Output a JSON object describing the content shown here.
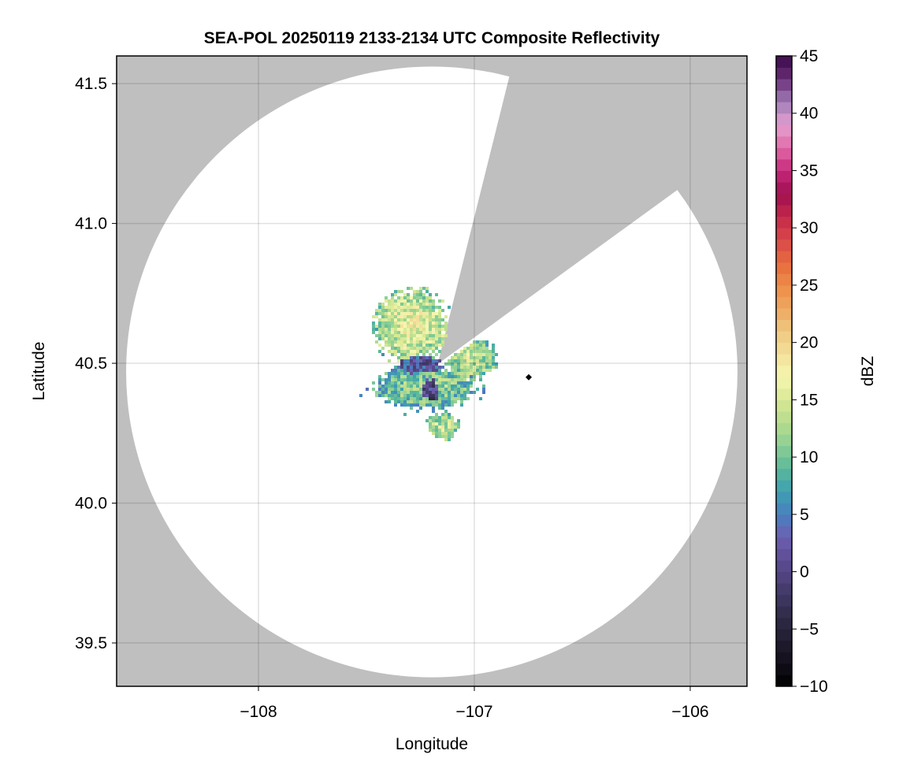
{
  "chart_data": {
    "type": "heatmap",
    "title": "SEA-POL 20250119 2133-2134 UTC Composite Reflectivity",
    "xlabel": "Longitude",
    "ylabel": "Latitude",
    "xlim": [
      -108.657,
      -105.737
    ],
    "ylim": [
      39.345,
      41.599
    ],
    "xticks": [
      -108,
      -107,
      -106
    ],
    "xtick_labels": [
      "−108",
      "−107",
      "−106"
    ],
    "yticks": [
      39.5,
      40.0,
      40.5,
      41.0,
      41.5
    ],
    "ytick_labels": [
      "39.5",
      "40.0",
      "40.5",
      "41.0",
      "41.5"
    ],
    "grid": true,
    "background_color": "#bfbfbf",
    "radar": {
      "center_lon": -107.197,
      "center_lat": 40.469,
      "range_lon_deg": 1.416,
      "range_lat_deg": 1.092,
      "beam_origin_lon": -107.17,
      "beam_origin_lat": 40.497,
      "blocked_azimuth_deg": [
        14,
        54
      ]
    },
    "marker": {
      "lon": -106.748,
      "lat": 40.45,
      "shape": "diamond",
      "color": "#000000"
    },
    "echo_regions": [
      {
        "lon": -107.3,
        "lat": 40.64,
        "rlon": 0.16,
        "rlat": 0.13,
        "dbz": 12
      },
      {
        "lon": -107.025,
        "lat": 40.52,
        "rlon": 0.12,
        "rlat": 0.07,
        "dbz": 10
      },
      {
        "lon": -107.226,
        "lat": 40.42,
        "rlon": 0.24,
        "rlat": 0.075,
        "dbz": 8
      },
      {
        "lon": -107.26,
        "lat": 40.5,
        "rlon": 0.1,
        "rlat": 0.03,
        "dbz": 2
      },
      {
        "lon": -107.153,
        "lat": 40.28,
        "rlon": 0.07,
        "rlat": 0.05,
        "dbz": 10
      },
      {
        "lon": -107.208,
        "lat": 40.41,
        "rlon": 0.04,
        "rlat": 0.04,
        "dbz": 0
      }
    ],
    "colorbar": {
      "label": "dBZ",
      "range": [
        -10,
        45
      ],
      "step": 1,
      "ticks": [
        -10,
        -5,
        0,
        5,
        10,
        15,
        20,
        25,
        30,
        35,
        40,
        45
      ],
      "tick_labels": [
        "−10",
        "−5",
        "0",
        "5",
        "10",
        "15",
        "20",
        "25",
        "30",
        "35",
        "40",
        "45"
      ],
      "anchors": [
        [
          -10,
          "#000000"
        ],
        [
          -7,
          "#1a1625"
        ],
        [
          -4,
          "#2e2a45"
        ],
        [
          -1,
          "#4a3f75"
        ],
        [
          1,
          "#5d4b93"
        ],
        [
          3,
          "#6b5fb0"
        ],
        [
          5,
          "#4a80c0"
        ],
        [
          7,
          "#3ea0b0"
        ],
        [
          9,
          "#5ab89a"
        ],
        [
          11,
          "#8ccf96"
        ],
        [
          13,
          "#b6dc8e"
        ],
        [
          15,
          "#d8e895"
        ],
        [
          17,
          "#f6f7b0"
        ],
        [
          19,
          "#f3e09a"
        ],
        [
          21,
          "#f0c880"
        ],
        [
          23,
          "#eda860"
        ],
        [
          25,
          "#ed8c48"
        ],
        [
          27,
          "#e66a3e"
        ],
        [
          29,
          "#d9484a"
        ],
        [
          31,
          "#c3284a"
        ],
        [
          33,
          "#a01050"
        ],
        [
          35,
          "#c7287a"
        ],
        [
          37,
          "#e06aa8"
        ],
        [
          39,
          "#e5a0d0"
        ],
        [
          41,
          "#a07cb8"
        ],
        [
          43,
          "#6a2e78"
        ],
        [
          45,
          "#3a0a4a"
        ]
      ]
    }
  }
}
